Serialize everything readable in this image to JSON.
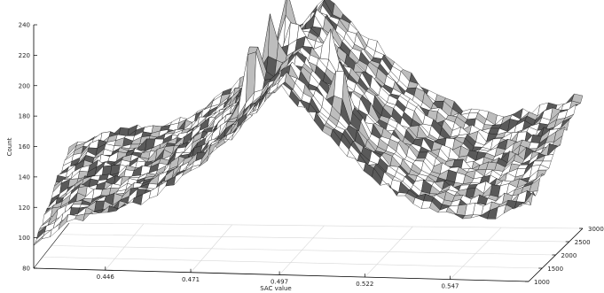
{
  "chart_data": {
    "type": "surface3d",
    "title": "",
    "xlabel": "SAC value",
    "ylabel": "",
    "zlabel": "Count",
    "x_ticks": [
      "0.446",
      "0.471",
      "0.497",
      "0.522",
      "0.547"
    ],
    "y_ticks": [
      "1000",
      "1500",
      "2000",
      "2500",
      "3000"
    ],
    "z_ticks": [
      "80",
      "100",
      "120",
      "140",
      "160",
      "180",
      "200",
      "220",
      "240"
    ],
    "xlim": [
      0.425,
      0.57
    ],
    "ylim": [
      1000,
      3000
    ],
    "zlim": [
      80,
      240
    ],
    "grid": true,
    "surface_profile": {
      "x": [
        0.425,
        0.435,
        0.446,
        0.459,
        0.471,
        0.484,
        0.497,
        0.509,
        0.522,
        0.535,
        0.547,
        0.56,
        0.57
      ],
      "count_at_y1000": [
        95,
        112,
        118,
        128,
        147,
        172,
        205,
        178,
        150,
        130,
        122,
        123,
        130
      ],
      "count_at_y3000": [
        130,
        140,
        143,
        150,
        170,
        195,
        230,
        205,
        178,
        158,
        152,
        160,
        168
      ]
    },
    "peaks": [
      {
        "x": 0.484,
        "y": 1800,
        "count": 232
      },
      {
        "x": 0.488,
        "y": 2000,
        "count": 233
      },
      {
        "x": 0.49,
        "y": 2400,
        "count": 246
      },
      {
        "x": 0.493,
        "y": 2200,
        "count": 228
      },
      {
        "x": 0.5,
        "y": 2600,
        "count": 225
      },
      {
        "x": 0.505,
        "y": 2100,
        "count": 222
      },
      {
        "x": 0.511,
        "y": 1600,
        "count": 215
      }
    ]
  }
}
